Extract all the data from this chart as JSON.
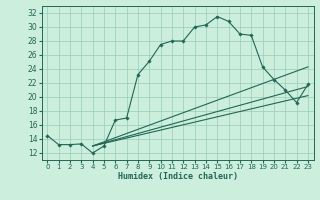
{
  "xlabel": "Humidex (Indice chaleur)",
  "bg_color": "#cceedd",
  "grid_color": "#99ccbb",
  "line_color": "#226655",
  "xlim": [
    -0.5,
    23.5
  ],
  "ylim": [
    11,
    33
  ],
  "yticks": [
    12,
    14,
    16,
    18,
    20,
    22,
    24,
    26,
    28,
    30,
    32
  ],
  "xticks": [
    0,
    1,
    2,
    3,
    4,
    5,
    6,
    7,
    8,
    9,
    10,
    11,
    12,
    13,
    14,
    15,
    16,
    17,
    18,
    19,
    20,
    21,
    22,
    23
  ],
  "series1_x": [
    0,
    1,
    2,
    3,
    4,
    5,
    6,
    7,
    8,
    9,
    10,
    11,
    12,
    13,
    14,
    15,
    16,
    17,
    18,
    19,
    20,
    21,
    22,
    23
  ],
  "series1_y": [
    14.5,
    13.2,
    13.2,
    13.3,
    12.0,
    13.0,
    16.7,
    17.0,
    23.2,
    25.1,
    27.5,
    28.0,
    28.0,
    30.0,
    30.3,
    31.5,
    30.8,
    29.0,
    28.8,
    24.3,
    22.5,
    21.0,
    19.2,
    21.8
  ],
  "trend2_x": [
    4,
    23
  ],
  "trend2_y": [
    13.5,
    21.5
  ],
  "trend3_x": [
    4,
    23
  ],
  "trend3_y": [
    13.5,
    20.2
  ]
}
